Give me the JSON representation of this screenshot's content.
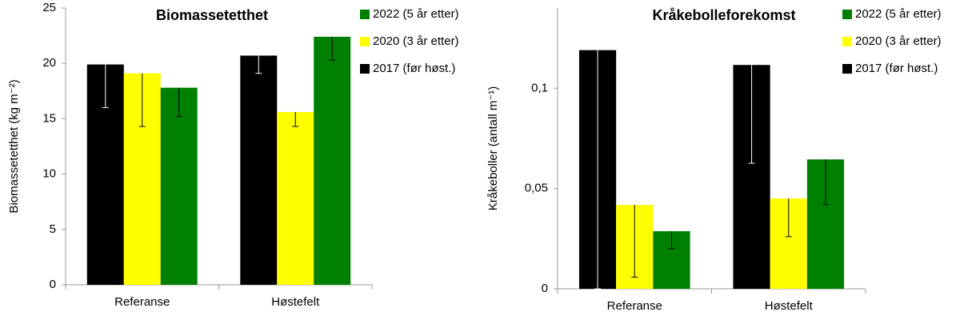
{
  "chart_data": [
    {
      "type": "bar",
      "title": "Biomassetetthet",
      "ylabel": "Biomassetetthet  (kg m⁻²)",
      "categories": [
        "Referanse",
        "Høstefelt"
      ],
      "series": [
        {
          "name": "2017 (før høst.)",
          "color": "#000000",
          "values": [
            19.9,
            20.7
          ],
          "errors": [
            3.9,
            1.6
          ]
        },
        {
          "name": "2020 (3 år etter)",
          "color": "#ffff00",
          "values": [
            19.1,
            15.6
          ],
          "errors": [
            4.8,
            1.3
          ]
        },
        {
          "name": "2022 (5 år etter)",
          "color": "#008000",
          "values": [
            17.8,
            22.4
          ],
          "errors": [
            2.6,
            2.1
          ]
        }
      ],
      "ylim": [
        0,
        25
      ],
      "yticks": [
        0,
        5,
        10,
        15,
        20,
        25
      ],
      "grid": false
    },
    {
      "type": "bar",
      "title": "Kråkebolleforekomst",
      "ylabel": "Kråkeboller  (antall m⁻¹)",
      "categories": [
        "Referanse",
        "Høstefelt"
      ],
      "series": [
        {
          "name": "2017 (før høst.)",
          "color": "#000000",
          "values": [
            0.119,
            0.1116
          ],
          "errors": [
            0.119,
            0.049
          ]
        },
        {
          "name": "2020 (3 år etter)",
          "color": "#ffff00",
          "values": [
            0.0418,
            0.045
          ],
          "errors": [
            0.036,
            0.019
          ]
        },
        {
          "name": "2022 (5 år etter)",
          "color": "#008000",
          "values": [
            0.0287,
            0.0645
          ],
          "errors": [
            0.0087,
            0.0225
          ]
        }
      ],
      "ylim": [
        0,
        0.14
      ],
      "yticks": [
        0,
        {
          "value": 0.05,
          "label": "0,05"
        },
        {
          "value": 0.1,
          "label": "0,1"
        }
      ],
      "grid": false
    }
  ]
}
